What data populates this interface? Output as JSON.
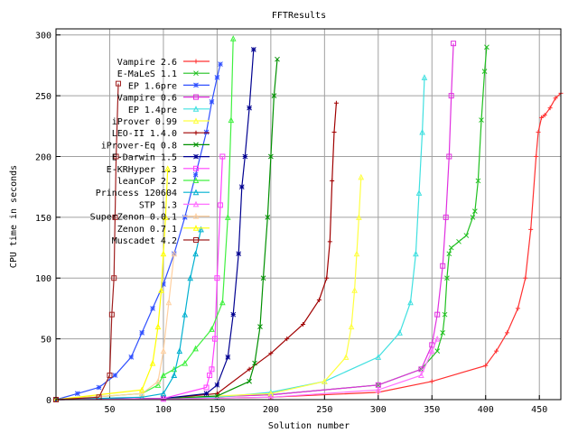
{
  "chart_data": {
    "type": "line",
    "title": "FFTResults",
    "xlabel": "Solution number",
    "ylabel": "CPU time in seconds",
    "xlim": [
      0,
      470
    ],
    "ylim": [
      0,
      305
    ],
    "xticks": [
      50,
      100,
      150,
      200,
      250,
      300,
      350,
      400,
      450
    ],
    "yticks": [
      0,
      50,
      100,
      150,
      200,
      250,
      300
    ],
    "grid": true,
    "legend_position": "top-left",
    "series": [
      {
        "name": "Vampire 2.6",
        "color": "#ff3030",
        "marker": "plus",
        "x": [
          0,
          100,
          200,
          300,
          350,
          400,
          410,
          420,
          430,
          437,
          442,
          447,
          449,
          452,
          455,
          460,
          465,
          470
        ],
        "y": [
          0,
          0.5,
          2,
          6,
          15,
          28,
          40,
          55,
          75,
          100,
          140,
          200,
          220,
          232,
          234,
          240,
          248,
          252
        ]
      },
      {
        "name": "E-MaLeS 1.1",
        "color": "#20c020",
        "marker": "x",
        "x": [
          0,
          100,
          200,
          300,
          340,
          355,
          360,
          362,
          364,
          366,
          368,
          375,
          382,
          388,
          390,
          393,
          396,
          399,
          401
        ],
        "y": [
          0,
          1,
          4,
          12,
          25,
          40,
          55,
          70,
          100,
          120,
          125,
          130,
          135,
          150,
          155,
          180,
          230,
          270,
          290
        ]
      },
      {
        "name": "EP 1.6pre",
        "color": "#3050ff",
        "marker": "asterisk",
        "x": [
          0,
          20,
          40,
          55,
          70,
          80,
          90,
          100,
          110,
          120,
          130,
          140,
          145,
          150,
          153
        ],
        "y": [
          0,
          5,
          10,
          20,
          35,
          55,
          75,
          95,
          120,
          150,
          185,
          220,
          245,
          265,
          276
        ]
      },
      {
        "name": "Vampire 0.6",
        "color": "#e030e0",
        "marker": "square",
        "x": [
          0,
          100,
          200,
          300,
          340,
          350,
          355,
          360,
          363,
          366,
          368,
          370
        ],
        "y": [
          0,
          1,
          4,
          12,
          25,
          45,
          70,
          110,
          150,
          200,
          250,
          293
        ]
      },
      {
        "name": "EP 1.4pre",
        "color": "#40e0e0",
        "marker": "triangle",
        "x": [
          0,
          100,
          150,
          200,
          250,
          300,
          320,
          330,
          335,
          338,
          341,
          343
        ],
        "y": [
          0,
          0.5,
          2,
          6,
          15,
          35,
          55,
          80,
          120,
          170,
          220,
          265
        ]
      },
      {
        "name": "iProver 0.99",
        "color": "#ffff40",
        "marker": "triangle",
        "x": [
          0,
          100,
          200,
          250,
          270,
          275,
          278,
          280,
          282,
          284
        ],
        "y": [
          0,
          1,
          5,
          15,
          35,
          60,
          90,
          120,
          150,
          183
        ]
      },
      {
        "name": "LEO-II 1.4.0",
        "color": "#a00000",
        "marker": "plus",
        "x": [
          0,
          100,
          150,
          180,
          200,
          215,
          230,
          245,
          252,
          255,
          257,
          259,
          261
        ],
        "y": [
          0,
          1,
          5,
          25,
          38,
          50,
          62,
          82,
          100,
          130,
          180,
          220,
          244
        ]
      },
      {
        "name": "iProver-Eq 0.8",
        "color": "#009000",
        "marker": "x",
        "x": [
          0,
          100,
          150,
          180,
          185,
          190,
          193,
          197,
          200,
          203,
          206
        ],
        "y": [
          0,
          1,
          3,
          15,
          30,
          60,
          100,
          150,
          200,
          250,
          280
        ]
      },
      {
        "name": "E-Darwin 1.5",
        "color": "#000090",
        "marker": "asterisk",
        "x": [
          0,
          100,
          140,
          150,
          160,
          165,
          170,
          173,
          176,
          180,
          184
        ],
        "y": [
          0,
          1,
          5,
          12,
          35,
          70,
          120,
          175,
          200,
          240,
          288
        ]
      },
      {
        "name": "E-KRHyper 1.3",
        "color": "#ff40ff",
        "marker": "square",
        "x": [
          0,
          100,
          140,
          143,
          145,
          148,
          150,
          153,
          155
        ],
        "y": [
          0,
          1,
          10,
          20,
          25,
          50,
          100,
          160,
          200
        ]
      },
      {
        "name": "leanCoP 2.2",
        "color": "#40f040",
        "marker": "triangle",
        "x": [
          0,
          80,
          95,
          100,
          110,
          120,
          130,
          145,
          155,
          160,
          163,
          165
        ],
        "y": [
          0,
          5,
          12,
          20,
          25,
          30,
          42,
          58,
          80,
          150,
          230,
          297
        ]
      },
      {
        "name": "Princess 120604",
        "color": "#00b0d0",
        "marker": "triangle",
        "x": [
          0,
          80,
          100,
          110,
          115,
          120,
          125,
          130,
          135
        ],
        "y": [
          0,
          2,
          5,
          20,
          40,
          70,
          100,
          120,
          140
        ]
      },
      {
        "name": "STP 1.3",
        "color": "#ff70ff",
        "marker": "triangle",
        "x": [
          0,
          100,
          200,
          300,
          340,
          350,
          355
        ],
        "y": [
          0,
          0.5,
          2,
          8,
          20,
          40,
          50
        ]
      },
      {
        "name": "SuperZenon 0.0.1",
        "color": "#ffd0a0",
        "marker": "triangle",
        "x": [
          0,
          80,
          95,
          100,
          105,
          110
        ],
        "y": [
          0,
          5,
          15,
          40,
          80,
          120
        ]
      },
      {
        "name": "Zenon 0.7.1",
        "color": "#ffff00",
        "marker": "triangle",
        "x": [
          0,
          80,
          90,
          95,
          98,
          100,
          102,
          104
        ],
        "y": [
          0,
          8,
          30,
          60,
          90,
          120,
          150,
          190
        ]
      },
      {
        "name": "Muscadet 4.2",
        "color": "#a02020",
        "marker": "square",
        "x": [
          0,
          40,
          50,
          52,
          54,
          55,
          56,
          58
        ],
        "y": [
          0,
          2,
          20,
          70,
          100,
          150,
          200,
          260
        ]
      }
    ]
  }
}
